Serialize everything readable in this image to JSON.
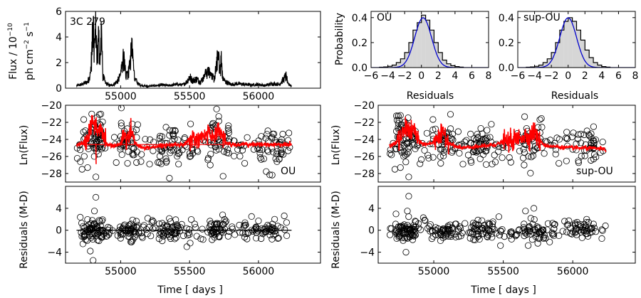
{
  "chart_data": [
    {
      "id": "flux",
      "type": "line",
      "annotation": "3C 279",
      "xlabel": "",
      "ylabel_line1": "Flux / 10",
      "ylabel_exp": "−10",
      "ylabel_line2": "ph cm",
      "ylabel_exp2": "−2",
      "ylabel_tail": " s",
      "ylabel_exp3": "−1",
      "xlim": [
        54600,
        56450
      ],
      "ylim": [
        0,
        6
      ],
      "xticks": [
        55000,
        55500,
        56000
      ],
      "yticks": [
        0,
        2,
        4,
        6
      ],
      "x": [
        54680,
        54720,
        54760,
        54780,
        54790,
        54800,
        54810,
        54820,
        54830,
        54840,
        54850,
        54860,
        54870,
        54890,
        54920,
        54950,
        54980,
        55000,
        55020,
        55040,
        55060,
        55080,
        55100,
        55130,
        55160,
        55200,
        55250,
        55300,
        55350,
        55400,
        55450,
        55480,
        55500,
        55520,
        55550,
        55580,
        55600,
        55620,
        55640,
        55660,
        55680,
        55700,
        55710,
        55720,
        55730,
        55740,
        55760,
        55780,
        55800,
        55850,
        55900,
        55950,
        56000,
        56050,
        56100,
        56150,
        56200,
        56220,
        56240
      ],
      "y": [
        0.2,
        0.3,
        0.5,
        1.0,
        2.5,
        5.0,
        3.0,
        4.7,
        2.0,
        4.0,
        1.5,
        4.8,
        1.0,
        0.4,
        0.2,
        0.3,
        0.6,
        1.0,
        2.3,
        1.0,
        1.3,
        3.1,
        0.8,
        0.3,
        0.2,
        0.15,
        0.2,
        0.25,
        0.2,
        0.3,
        0.25,
        0.5,
        0.9,
        0.6,
        0.7,
        0.5,
        0.8,
        1.2,
        1.3,
        0.9,
        0.7,
        2.1,
        3.1,
        1.0,
        2.2,
        0.8,
        0.5,
        0.4,
        0.3,
        0.35,
        0.3,
        0.25,
        0.3,
        0.2,
        0.35,
        0.3,
        0.9,
        0.3,
        0.2
      ]
    },
    {
      "id": "hist-ou",
      "type": "bar",
      "annotation": "OU",
      "xlabel": "Residuals",
      "ylabel": "Probability",
      "xlim": [
        -6,
        8
      ],
      "ylim": [
        0,
        0.45
      ],
      "xticks": [
        -6,
        -4,
        -2,
        0,
        2,
        4,
        6,
        8
      ],
      "yticks": [
        0.0,
        0.2,
        0.4
      ],
      "bin_edges": [
        -5,
        -4.5,
        -4,
        -3.5,
        -3,
        -2.5,
        -2,
        -1.5,
        -1,
        -0.5,
        0,
        0.5,
        1,
        1.5,
        2,
        2.5,
        3,
        3.5,
        4,
        4.5,
        5
      ],
      "values": [
        0.003,
        0.005,
        0.01,
        0.02,
        0.04,
        0.07,
        0.12,
        0.2,
        0.3,
        0.36,
        0.42,
        0.38,
        0.3,
        0.2,
        0.12,
        0.06,
        0.03,
        0.015,
        0.008,
        0.004
      ],
      "curve_mean": 0.2,
      "curve_sigma": 1.0
    },
    {
      "id": "hist-supou",
      "type": "bar",
      "annotation": "sup-OU",
      "xlabel": "Residuals",
      "ylabel": "",
      "xlim": [
        -6,
        8
      ],
      "ylim": [
        0,
        0.45
      ],
      "xticks": [
        -6,
        -4,
        -2,
        0,
        2,
        4,
        6,
        8
      ],
      "yticks": [
        0.0,
        0.2,
        0.4
      ],
      "bin_edges": [
        -5,
        -4.5,
        -4,
        -3.5,
        -3,
        -2.5,
        -2,
        -1.5,
        -1,
        -0.5,
        0,
        0.5,
        1,
        1.5,
        2,
        2.5,
        3,
        3.5,
        4,
        4.5,
        5
      ],
      "values": [
        0.003,
        0.005,
        0.01,
        0.02,
        0.04,
        0.07,
        0.12,
        0.2,
        0.3,
        0.37,
        0.4,
        0.37,
        0.3,
        0.22,
        0.14,
        0.08,
        0.04,
        0.02,
        0.008,
        0.004
      ],
      "curve_mean": 0.0,
      "curve_sigma": 1.0
    },
    {
      "id": "lnflux-ou",
      "type": "scatter",
      "annotation": "OU",
      "xlabel": "",
      "ylabel": "Ln(Flux)",
      "xlim": [
        54600,
        56450
      ],
      "ylim": [
        -29,
        -20
      ],
      "xticks": [
        55000,
        55500,
        56000
      ],
      "yticks": [
        -28,
        -26,
        -24,
        -22,
        -20
      ],
      "model_level": -24.6,
      "model_x": [
        54680,
        54720,
        54760,
        54780,
        54800,
        54820,
        54840,
        54860,
        54880,
        54900,
        54950,
        55000,
        55020,
        55040,
        55060,
        55080,
        55100,
        55150,
        55200,
        55300,
        55400,
        55450,
        55500,
        55550,
        55600,
        55620,
        55650,
        55680,
        55700,
        55720,
        55740,
        55760,
        55800,
        55900,
        56000,
        56100,
        56200,
        56240
      ],
      "model_y": [
        -24.6,
        -24.5,
        -24.0,
        -23.0,
        -22.2,
        -22.5,
        -23.0,
        -22.4,
        -23.8,
        -24.6,
        -24.8,
        -24.5,
        -23.3,
        -24.0,
        -23.5,
        -23.0,
        -24.3,
        -25.0,
        -25.0,
        -24.7,
        -24.6,
        -24.6,
        -24.2,
        -24.0,
        -23.8,
        -23.5,
        -23.2,
        -23.6,
        -23.2,
        -22.8,
        -23.5,
        -24.3,
        -24.6,
        -24.6,
        -24.6,
        -24.6,
        -24.6,
        -24.6
      ],
      "clusters": [
        [
          54800,
          -23.2,
          45,
          1.0,
          1.5
        ],
        [
          55060,
          -24.0,
          30,
          1.1,
          1.4
        ],
        [
          55720,
          -23.8,
          30,
          1.1,
          1.5
        ],
        [
          55350,
          -24.8,
          30,
          1.2,
          1.3
        ],
        [
          56100,
          -25.0,
          20,
          1.2,
          1.3
        ]
      ],
      "outliers": [
        [
          54720,
          -27.5
        ],
        [
          54760,
          -27.3
        ],
        [
          54820,
          -28.4
        ],
        [
          55050,
          -26.8
        ],
        [
          55210,
          -26.9
        ],
        [
          55270,
          -26.7
        ],
        [
          55420,
          -26.9
        ],
        [
          55650,
          -27.0
        ],
        [
          55900,
          -26.8
        ],
        [
          56150,
          -26.3
        ]
      ]
    },
    {
      "id": "lnflux-supou",
      "type": "scatter",
      "annotation": "sup-OU",
      "xlabel": "",
      "ylabel": "",
      "xlim": [
        54600,
        56450
      ],
      "ylim": [
        -29,
        -20
      ],
      "xticks": [
        55000,
        55500,
        56000
      ],
      "yticks": [
        -28,
        -26,
        -24,
        -22,
        -20
      ],
      "model_x": [
        54680,
        54720,
        54760,
        54780,
        54800,
        54820,
        54840,
        54860,
        54880,
        54900,
        54950,
        55000,
        55020,
        55040,
        55060,
        55080,
        55100,
        55150,
        55200,
        55300,
        55400,
        55450,
        55500,
        55550,
        55600,
        55620,
        55650,
        55680,
        55700,
        55720,
        55740,
        55760,
        55800,
        55900,
        56000,
        56100,
        56200,
        56240
      ],
      "model_y": [
        -24.8,
        -24.5,
        -24.0,
        -23.2,
        -22.6,
        -22.8,
        -23.4,
        -22.7,
        -23.9,
        -24.4,
        -24.6,
        -24.3,
        -23.4,
        -24.0,
        -23.6,
        -23.2,
        -24.2,
        -24.8,
        -25.0,
        -24.9,
        -24.7,
        -24.6,
        -24.3,
        -24.2,
        -24.0,
        -23.7,
        -23.5,
        -23.8,
        -23.4,
        -23.0,
        -23.6,
        -24.2,
        -24.7,
        -24.9,
        -25.0,
        -25.0,
        -25.1,
        -25.2
      ],
      "clusters": [
        [
          54800,
          -23.2,
          45,
          1.0,
          1.5
        ],
        [
          55060,
          -24.0,
          30,
          1.1,
          1.4
        ],
        [
          55720,
          -23.8,
          30,
          1.1,
          1.5
        ],
        [
          55350,
          -24.8,
          30,
          1.2,
          1.3
        ],
        [
          56100,
          -25.0,
          20,
          1.2,
          1.3
        ]
      ],
      "outliers": [
        [
          54720,
          -27.5
        ],
        [
          54760,
          -27.3
        ],
        [
          54820,
          -28.4
        ],
        [
          55050,
          -26.8
        ],
        [
          55210,
          -26.9
        ],
        [
          55270,
          -26.7
        ],
        [
          55420,
          -26.9
        ],
        [
          55650,
          -27.0
        ],
        [
          55900,
          -26.8
        ],
        [
          56150,
          -26.3
        ]
      ]
    },
    {
      "id": "resid-ou",
      "type": "scatter",
      "annotation": "",
      "xlabel": "Time [ days ]",
      "ylabel": "Residuals (M-D)",
      "xlim": [
        54600,
        56450
      ],
      "ylim": [
        -6,
        8
      ],
      "xticks": [
        55000,
        55500,
        56000
      ],
      "yticks": [
        -4,
        0,
        4
      ],
      "model_level": 0,
      "clusters": [
        [
          54800,
          0,
          55,
          1.0,
          1.2
        ],
        [
          55060,
          0,
          35,
          1.0,
          1.1
        ],
        [
          55720,
          0,
          35,
          1.0,
          1.1
        ],
        [
          55350,
          0,
          35,
          1.0,
          1.0
        ],
        [
          56050,
          0,
          25,
          1.0,
          1.0
        ]
      ],
      "outliers": [
        [
          54820,
          6.0
        ],
        [
          54810,
          3.5
        ],
        [
          54800,
          -5.5
        ],
        [
          54780,
          -3.8
        ],
        [
          55480,
          -3.0
        ],
        [
          55950,
          2.5
        ],
        [
          55740,
          2.8
        ]
      ]
    },
    {
      "id": "resid-supou",
      "type": "scatter",
      "annotation": "",
      "xlabel": "Time [ days ]",
      "ylabel": "Residuals (M-D)",
      "xlim": [
        54600,
        56450
      ],
      "ylim": [
        -6,
        8
      ],
      "xticks": [
        55000,
        55500,
        56000
      ],
      "yticks": [
        -4,
        0,
        4
      ],
      "clusters": [
        [
          54800,
          0,
          55,
          1.0,
          1.2
        ],
        [
          55060,
          0,
          35,
          1.0,
          1.1
        ],
        [
          55720,
          0,
          35,
          1.0,
          1.1
        ],
        [
          55350,
          0,
          35,
          1.0,
          1.0
        ],
        [
          56050,
          0,
          25,
          1.0,
          1.0
        ]
      ],
      "outliers": [
        [
          54820,
          6.2
        ],
        [
          54810,
          3.5
        ],
        [
          54800,
          -4.0
        ],
        [
          55720,
          4.0
        ],
        [
          55660,
          3.5
        ],
        [
          55480,
          -2.8
        ],
        [
          56100,
          2.0
        ]
      ]
    }
  ]
}
